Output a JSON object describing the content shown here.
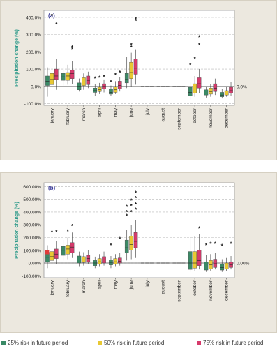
{
  "chart_data": [
    {
      "type": "boxplot",
      "panel_label": "(a)",
      "ylabel": "Precipitation change (%)",
      "yticks": [
        "400.0%",
        "300.0%",
        "200.0%",
        "100.0%",
        "0.0%",
        "-100.0%"
      ],
      "ytick_values": [
        400,
        300,
        200,
        100,
        0,
        -100
      ],
      "ylim": [
        -110,
        440
      ],
      "reference_label": "0.0%",
      "grid": true,
      "categories": [
        "january",
        "february",
        "march",
        "april",
        "may",
        "june",
        "july",
        "august",
        "september",
        "october",
        "november",
        "december"
      ],
      "series": [
        {
          "name": "25% risk in future period",
          "color": "#3a8a66",
          "boxes": [
            {
              "min": -60,
              "q1": 5,
              "median": 30,
              "q3": 60,
              "max": 110,
              "outliers": []
            },
            {
              "min": 5,
              "q1": 35,
              "median": 55,
              "q3": 75,
              "max": 110,
              "outliers": []
            },
            {
              "min": -30,
              "q1": -20,
              "median": 0,
              "q3": 20,
              "max": 45,
              "outliers": []
            },
            {
              "min": -55,
              "q1": -35,
              "median": -25,
              "q3": -10,
              "max": 15,
              "outliers": [
                45
              ]
            },
            {
              "min": -55,
              "q1": -45,
              "median": -35,
              "q3": -15,
              "max": 5,
              "outliers": [
                25
              ]
            },
            {
              "min": -10,
              "q1": 20,
              "median": 40,
              "q3": 75,
              "max": 170,
              "outliers": []
            },
            {
              "min": 0,
              "q1": 0,
              "median": 0,
              "q3": 0,
              "max": 0,
              "outliers": []
            },
            {
              "min": 0,
              "q1": 0,
              "median": 0,
              "q3": 0,
              "max": 0,
              "outliers": []
            },
            {
              "min": 0,
              "q1": 0,
              "median": 0,
              "q3": 0,
              "max": 0,
              "outliers": []
            },
            {
              "min": -75,
              "q1": -55,
              "median": -35,
              "q3": -5,
              "max": 25,
              "outliers": [
                125
              ]
            },
            {
              "min": -65,
              "q1": -50,
              "median": -40,
              "q3": -20,
              "max": 0,
              "outliers": []
            },
            {
              "min": -70,
              "q1": -60,
              "median": -50,
              "q3": -35,
              "max": -15,
              "outliers": []
            }
          ]
        },
        {
          "name": "50% risk in future period",
          "color": "#e8c833",
          "boxes": [
            {
              "min": -40,
              "q1": 10,
              "median": 40,
              "q3": 75,
              "max": 135,
              "outliers": [
                410
              ]
            },
            {
              "min": 10,
              "q1": 35,
              "median": 60,
              "q3": 80,
              "max": 125,
              "outliers": []
            },
            {
              "min": -20,
              "q1": 5,
              "median": 25,
              "q3": 50,
              "max": 75,
              "outliers": []
            },
            {
              "min": -45,
              "q1": -30,
              "median": -20,
              "q3": -5,
              "max": 20,
              "outliers": [
                50
              ]
            },
            {
              "min": -45,
              "q1": -35,
              "median": -20,
              "q3": 0,
              "max": 30,
              "outliers": [
                65
              ]
            },
            {
              "min": 0,
              "q1": 45,
              "median": 80,
              "q3": 140,
              "max": 195,
              "outliers": [
                225,
                240
              ]
            },
            {
              "min": 0,
              "q1": 0,
              "median": 0,
              "q3": 0,
              "max": 0,
              "outliers": []
            },
            {
              "min": 0,
              "q1": 0,
              "median": 0,
              "q3": 0,
              "max": 0,
              "outliers": []
            },
            {
              "min": 0,
              "q1": 0,
              "median": 0,
              "q3": 0,
              "max": 0,
              "outliers": []
            },
            {
              "min": -60,
              "q1": -40,
              "median": -15,
              "q3": 15,
              "max": 60,
              "outliers": [
                160
              ]
            },
            {
              "min": -60,
              "q1": -45,
              "median": -30,
              "q3": -10,
              "max": 15,
              "outliers": []
            },
            {
              "min": -60,
              "q1": -50,
              "median": -40,
              "q3": -25,
              "max": 0,
              "outliers": []
            }
          ]
        },
        {
          "name": "75% risk in future period",
          "color": "#d63a6b",
          "boxes": [
            {
              "min": -20,
              "q1": 40,
              "median": 60,
              "q3": 100,
              "max": 160,
              "outliers": [
                360
              ]
            },
            {
              "min": 15,
              "q1": 45,
              "median": 75,
              "q3": 95,
              "max": 145,
              "outliers": [
                215,
                225
              ]
            },
            {
              "min": -10,
              "q1": 10,
              "median": 35,
              "q3": 60,
              "max": 85,
              "outliers": []
            },
            {
              "min": -35,
              "q1": -15,
              "median": 0,
              "q3": 15,
              "max": 40,
              "outliers": [
                55
              ]
            },
            {
              "min": -30,
              "q1": -15,
              "median": 5,
              "q3": 30,
              "max": 55,
              "outliers": [
                80
              ]
            },
            {
              "min": 10,
              "q1": 70,
              "median": 105,
              "q3": 160,
              "max": 215,
              "outliers": [
                380,
                390
              ]
            },
            {
              "min": 0,
              "q1": 0,
              "median": 0,
              "q3": 0,
              "max": 0,
              "outliers": []
            },
            {
              "min": 0,
              "q1": 0,
              "median": 0,
              "q3": 0,
              "max": 0,
              "outliers": []
            },
            {
              "min": 0,
              "q1": 0,
              "median": 0,
              "q3": 0,
              "max": 0,
              "outliers": []
            },
            {
              "min": -40,
              "q1": -10,
              "median": 15,
              "q3": 50,
              "max": 100,
              "outliers": [
                240,
                285
              ]
            },
            {
              "min": -50,
              "q1": -30,
              "median": -10,
              "q3": 15,
              "max": 45,
              "outliers": []
            },
            {
              "min": -55,
              "q1": -40,
              "median": -25,
              "q3": -5,
              "max": 25,
              "outliers": []
            }
          ]
        }
      ]
    },
    {
      "type": "boxplot",
      "panel_label": "(b)",
      "ylabel": "Precipitation change (%)",
      "yticks": [
        "600.00%",
        "500.00%",
        "400.00%",
        "300.00%",
        "200.00%",
        "100.00%",
        "0.00%",
        "-100.00%"
      ],
      "ytick_values": [
        600,
        500,
        400,
        300,
        200,
        100,
        0,
        -100
      ],
      "ylim": [
        -115,
        630
      ],
      "reference_label": "0.00%",
      "grid": true,
      "categories": [
        "january",
        "february",
        "march",
        "april",
        "may",
        "june",
        "july",
        "august",
        "september",
        "october",
        "november",
        "december"
      ],
      "series": [
        {
          "name": "25% risk in future period",
          "color": "#3a8a66",
          "boxes": [
            {
              "min": -40,
              "q1": 10,
              "median": 45,
              "q3": 85,
              "max": 140,
              "outliers": []
            },
            {
              "min": 20,
              "q1": 60,
              "median": 100,
              "q3": 130,
              "max": 180,
              "outliers": []
            },
            {
              "min": -30,
              "q1": 0,
              "median": 25,
              "q3": 55,
              "max": 90,
              "outliers": []
            },
            {
              "min": -40,
              "q1": -20,
              "median": 0,
              "q3": 20,
              "max": 50,
              "outliers": []
            },
            {
              "min": -40,
              "q1": -15,
              "median": 5,
              "q3": 25,
              "max": 55,
              "outliers": [
                140
              ]
            },
            {
              "min": 20,
              "q1": 80,
              "median": 120,
              "q3": 180,
              "max": 260,
              "outliers": [
                370,
                400,
                440
              ]
            },
            {
              "min": 0,
              "q1": 0,
              "median": 0,
              "q3": 0,
              "max": 0,
              "outliers": []
            },
            {
              "min": 0,
              "q1": 0,
              "median": 0,
              "q3": 0,
              "max": 0,
              "outliers": []
            },
            {
              "min": 0,
              "q1": 0,
              "median": 0,
              "q3": 0,
              "max": 0,
              "outliers": []
            },
            {
              "min": -70,
              "q1": -50,
              "median": 0,
              "q3": 90,
              "max": 200,
              "outliers": []
            },
            {
              "min": -70,
              "q1": -55,
              "median": -25,
              "q3": 10,
              "max": 60,
              "outliers": [
                140
              ]
            },
            {
              "min": -70,
              "q1": -55,
              "median": -35,
              "q3": -10,
              "max": 30,
              "outliers": [
                135
              ]
            }
          ]
        },
        {
          "name": "50% risk in future period",
          "color": "#e8c833",
          "boxes": [
            {
              "min": -30,
              "q1": 20,
              "median": 50,
              "q3": 90,
              "max": 150,
              "outliers": [
                240
              ]
            },
            {
              "min": 30,
              "q1": 70,
              "median": 110,
              "q3": 140,
              "max": 200,
              "outliers": [
                250
              ]
            },
            {
              "min": -20,
              "q1": 5,
              "median": 25,
              "q3": 50,
              "max": 85,
              "outliers": []
            },
            {
              "min": -30,
              "q1": -10,
              "median": 10,
              "q3": 35,
              "max": 70,
              "outliers": []
            },
            {
              "min": -30,
              "q1": -10,
              "median": 10,
              "q3": 35,
              "max": 70,
              "outliers": []
            },
            {
              "min": 30,
              "q1": 100,
              "median": 145,
              "q3": 210,
              "max": 300,
              "outliers": [
                400,
                450,
                490
              ]
            },
            {
              "min": 0,
              "q1": 0,
              "median": 0,
              "q3": 0,
              "max": 0,
              "outliers": []
            },
            {
              "min": 0,
              "q1": 0,
              "median": 0,
              "q3": 0,
              "max": 0,
              "outliers": []
            },
            {
              "min": 0,
              "q1": 0,
              "median": 0,
              "q3": 0,
              "max": 0,
              "outliers": []
            },
            {
              "min": -60,
              "q1": -40,
              "median": 0,
              "q3": 90,
              "max": 210,
              "outliers": []
            },
            {
              "min": -60,
              "q1": -45,
              "median": -15,
              "q3": 20,
              "max": 70,
              "outliers": [
                150
              ]
            },
            {
              "min": -60,
              "q1": -45,
              "median": -25,
              "q3": 0,
              "max": 40,
              "outliers": []
            }
          ]
        },
        {
          "name": "75% risk in future period",
          "color": "#d63a6b",
          "boxes": [
            {
              "min": -10,
              "q1": 35,
              "median": 70,
              "q3": 110,
              "max": 170,
              "outliers": [
                245
              ]
            },
            {
              "min": 40,
              "q1": 80,
              "median": 125,
              "q3": 160,
              "max": 240,
              "outliers": [
                290
              ]
            },
            {
              "min": -10,
              "q1": 10,
              "median": 35,
              "q3": 60,
              "max": 100,
              "outliers": []
            },
            {
              "min": -20,
              "q1": 0,
              "median": 25,
              "q3": 50,
              "max": 90,
              "outliers": []
            },
            {
              "min": -20,
              "q1": 0,
              "median": 15,
              "q3": 40,
              "max": 80,
              "outliers": [
                190
              ]
            },
            {
              "min": 40,
              "q1": 120,
              "median": 170,
              "q3": 240,
              "max": 340,
              "outliers": [
                420,
                460,
                510,
                550
              ]
            },
            {
              "min": 0,
              "q1": 0,
              "median": 0,
              "q3": 0,
              "max": 0,
              "outliers": []
            },
            {
              "min": 0,
              "q1": 0,
              "median": 0,
              "q3": 0,
              "max": 0,
              "outliers": []
            },
            {
              "min": 0,
              "q1": 0,
              "median": 0,
              "q3": 0,
              "max": 0,
              "outliers": []
            },
            {
              "min": -50,
              "q1": -20,
              "median": 20,
              "q3": 100,
              "max": 230,
              "outliers": [
                270
              ]
            },
            {
              "min": -50,
              "q1": -35,
              "median": -5,
              "q3": 30,
              "max": 80,
              "outliers": [
                150
              ]
            },
            {
              "min": -50,
              "q1": -35,
              "median": -15,
              "q3": 10,
              "max": 55,
              "outliers": [
                150
              ]
            }
          ]
        }
      ],
      "extra_markers": [
        {
          "category": "january",
          "value": 85,
          "color": "#e03b3b"
        }
      ]
    }
  ],
  "legend": [
    {
      "label": "25% risk in future period",
      "color": "#3a8a66"
    },
    {
      "label": "50% risk in future period",
      "color": "#e8c833"
    },
    {
      "label": "75% risk in future period",
      "color": "#d63a6b"
    }
  ]
}
